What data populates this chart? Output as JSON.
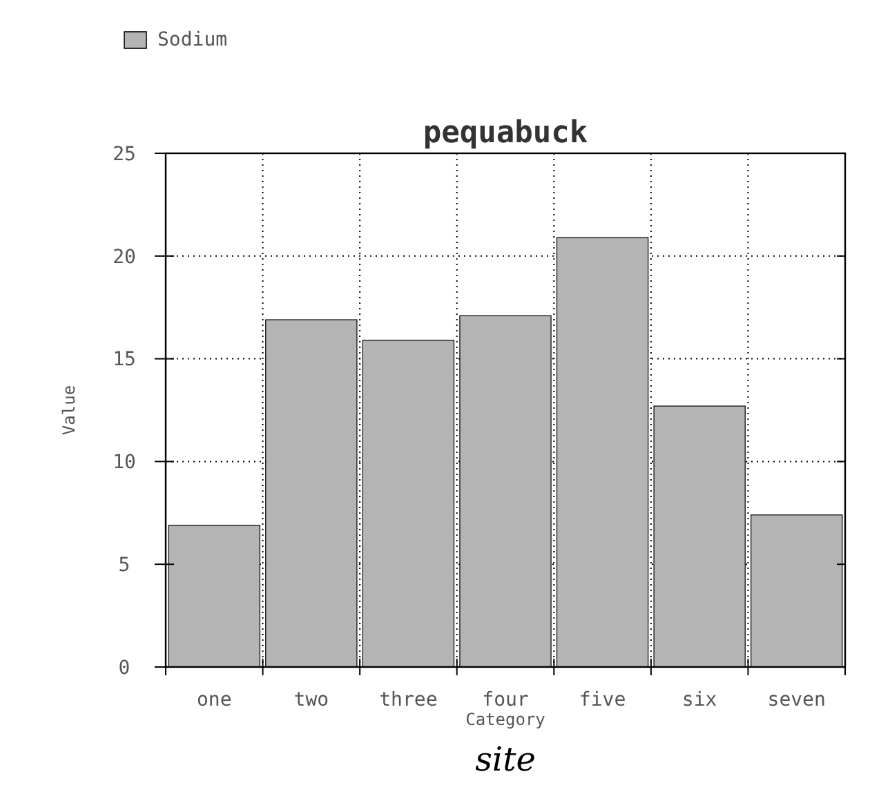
{
  "chart_data": {
    "type": "bar",
    "title": "pequabuck",
    "xlabel": "Category",
    "ylabel": "Value",
    "categories": [
      "one",
      "two",
      "three",
      "four",
      "five",
      "six",
      "seven"
    ],
    "series": [
      {
        "name": "Sodium",
        "color": "#b4b4b4",
        "values": [
          6.9,
          16.9,
          15.9,
          17.1,
          20.9,
          12.7,
          7.4
        ]
      }
    ],
    "ylim": [
      0,
      25
    ],
    "yticks": [
      0,
      5,
      10,
      15,
      20,
      25
    ],
    "grid": true,
    "legend": "top left",
    "annotations": [
      "site"
    ]
  }
}
